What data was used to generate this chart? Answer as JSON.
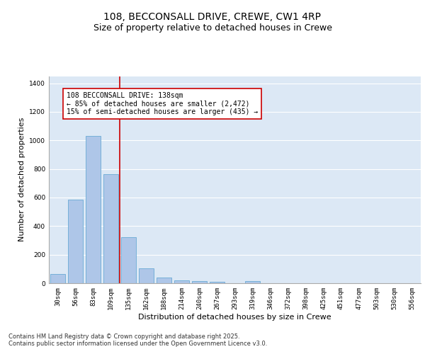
{
  "title_line1": "108, BECCONSALL DRIVE, CREWE, CW1 4RP",
  "title_line2": "Size of property relative to detached houses in Crewe",
  "xlabel": "Distribution of detached houses by size in Crewe",
  "ylabel": "Number of detached properties",
  "categories": [
    "30sqm",
    "56sqm",
    "83sqm",
    "109sqm",
    "135sqm",
    "162sqm",
    "188sqm",
    "214sqm",
    "240sqm",
    "267sqm",
    "293sqm",
    "319sqm",
    "346sqm",
    "372sqm",
    "398sqm",
    "425sqm",
    "451sqm",
    "477sqm",
    "503sqm",
    "530sqm",
    "556sqm"
  ],
  "values": [
    65,
    585,
    1030,
    765,
    320,
    105,
    42,
    22,
    15,
    10,
    0,
    15,
    0,
    0,
    0,
    0,
    0,
    0,
    0,
    0,
    0
  ],
  "bar_color": "#aec6e8",
  "bar_edge_color": "#6aaad4",
  "vline_index": 4,
  "vline_color": "#cc0000",
  "annotation_text": "108 BECCONSALL DRIVE: 138sqm\n← 85% of detached houses are smaller (2,472)\n15% of semi-detached houses are larger (435) →",
  "annotation_box_color": "white",
  "annotation_box_edge": "#cc0000",
  "ylim": [
    0,
    1450
  ],
  "background_color": "#dce8f5",
  "footer_text": "Contains HM Land Registry data © Crown copyright and database right 2025.\nContains public sector information licensed under the Open Government Licence v3.0.",
  "title_fontsize": 10,
  "subtitle_fontsize": 9,
  "axis_label_fontsize": 8,
  "tick_fontsize": 6.5,
  "annotation_fontsize": 7,
  "footer_fontsize": 6
}
